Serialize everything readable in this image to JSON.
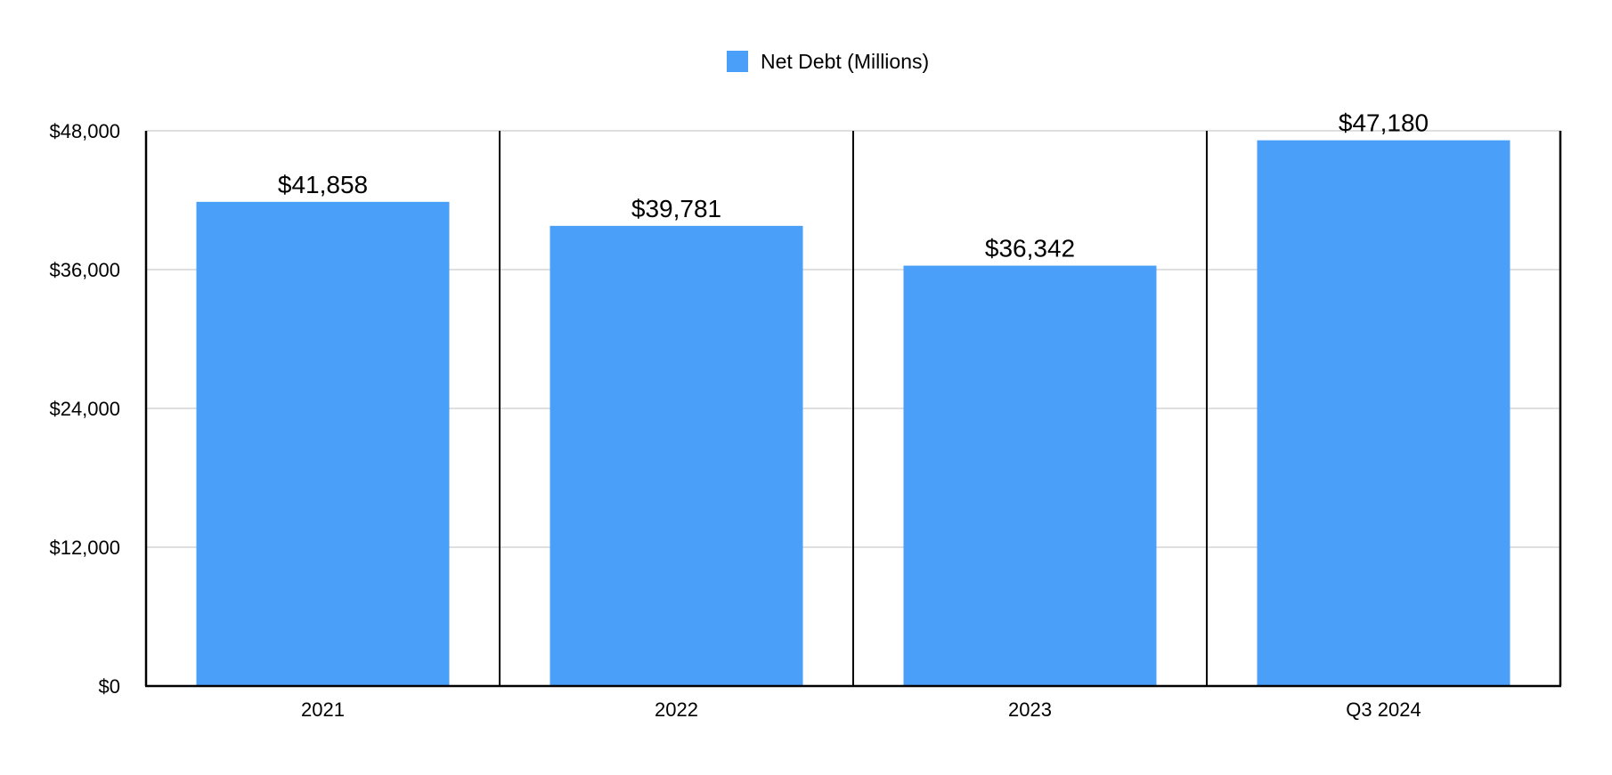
{
  "chart_data": {
    "type": "bar",
    "title": "",
    "xlabel": "",
    "ylabel": "",
    "categories": [
      "2021",
      "2022",
      "2023",
      "Q3 2024"
    ],
    "series": [
      {
        "name": "Net Debt (Millions)",
        "values": [
          41858,
          39781,
          36342,
          47180
        ],
        "color": "#4a9ff8"
      }
    ],
    "data_labels": [
      "$41,858",
      "$39,781",
      "$36,342",
      "$47,180"
    ],
    "ylim": [
      0,
      48000
    ],
    "yticks": [
      0,
      12000,
      24000,
      36000,
      48000
    ],
    "ytick_labels": [
      "$0",
      "$12,000",
      "$24,000",
      "$36,000",
      "$48,000"
    ],
    "grid": true,
    "legend_position": "top-center"
  }
}
